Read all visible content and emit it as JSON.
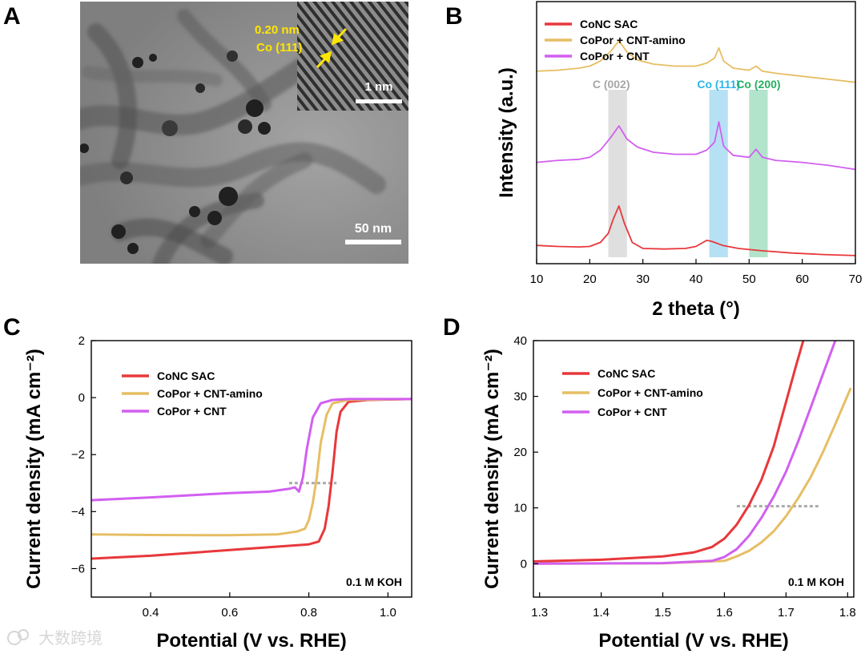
{
  "panels": {
    "a": "A",
    "b": "B",
    "c": "C",
    "d": "D"
  },
  "colors": {
    "red": "#e8383b",
    "gold": "#e6be64",
    "violet": "#d25ff0",
    "gray": "#aaaaaa",
    "frame": "#000000"
  },
  "tem": {
    "scale_bar": "50 nm",
    "inset_scale_bar": "1 nm",
    "lattice_spacing": "0.20 nm",
    "lattice_plane": "Co (111)"
  },
  "watermark": "大数跨境",
  "chart_data": [
    {
      "panel": "B",
      "type": "line",
      "xlabel": "2 theta (°)",
      "ylabel": "Intensity (a.u.)",
      "xlim": [
        10,
        70
      ],
      "xticks": [
        "10",
        "20",
        "30",
        "40",
        "50",
        "60",
        "70"
      ],
      "legend": [
        "CoNC SAC",
        "CoPor + CNT-amino",
        "CoPor + CNT"
      ],
      "bands": [
        {
          "label": "C (002)",
          "from": 23.5,
          "to": 27,
          "color": "#d9d9d9",
          "text_color": "#a6a6a6"
        },
        {
          "label": "Co (111)",
          "from": 42.5,
          "to": 46,
          "color": "#a9dcf2",
          "text_color": "#29b6e9"
        },
        {
          "label": "Co (200)",
          "from": 50,
          "to": 53.5,
          "color": "#a5dfc2",
          "text_color": "#22b05c"
        }
      ],
      "series": [
        {
          "name": "CoNC SAC",
          "color": "#e8383b",
          "offset": 0,
          "x": [
            10,
            14,
            18,
            20,
            22,
            23.5,
            24.5,
            25.5,
            26.5,
            28,
            30,
            34,
            38,
            40,
            42,
            43,
            45,
            48,
            52,
            58,
            64,
            70
          ],
          "y": [
            1.3,
            1.2,
            1.15,
            1.2,
            1.6,
            2.5,
            4.0,
            5.2,
            3.5,
            1.6,
            1.0,
            0.95,
            1.0,
            1.2,
            1.8,
            1.7,
            1.3,
            1.0,
            0.8,
            0.55,
            0.4,
            0.3
          ]
        },
        {
          "name": "CoPor + CNT",
          "color": "#d25ff0",
          "offset": 8.5,
          "x": [
            10,
            14,
            18,
            20,
            22,
            24,
            25.5,
            27,
            29,
            32,
            36,
            40,
            42,
            43.5,
            44.3,
            45.2,
            47,
            50,
            51.3,
            52.5,
            55,
            60,
            65,
            70
          ],
          "y": [
            1.0,
            1.2,
            1.3,
            1.5,
            2.2,
            3.5,
            4.6,
            3.3,
            2.5,
            2.0,
            1.8,
            1.8,
            2.2,
            3.0,
            5.0,
            2.6,
            1.7,
            1.5,
            2.3,
            1.5,
            1.2,
            1.0,
            0.7,
            0.3
          ]
        },
        {
          "name": "CoPor + CNT-amino",
          "color": "#e6be64",
          "offset": 17.0,
          "x": [
            10,
            14,
            18,
            20,
            22,
            24,
            25.5,
            27,
            29,
            32,
            36,
            40,
            42,
            43.5,
            44.3,
            45.2,
            47,
            50,
            51.3,
            52.5,
            55,
            60,
            65,
            70
          ],
          "y": [
            1.5,
            1.6,
            1.8,
            2.0,
            2.5,
            3.5,
            4.5,
            3.4,
            2.6,
            2.2,
            2.0,
            2.0,
            2.3,
            2.8,
            3.8,
            2.5,
            1.8,
            1.6,
            2.0,
            1.5,
            1.3,
            1.0,
            0.7,
            0.4
          ]
        }
      ]
    },
    {
      "panel": "C",
      "type": "line",
      "xlabel": "Potential (V vs. RHE)",
      "ylabel": "Current density (mA cm⁻²)",
      "xlim": [
        0.25,
        1.06
      ],
      "ylim": [
        -7,
        2
      ],
      "xticks": [
        0.4,
        0.6,
        0.8,
        1.0
      ],
      "xtick_labels": [
        "0.4",
        "0.6",
        "0.8",
        "1.0"
      ],
      "yticks": [
        2,
        0,
        -2,
        -4,
        -6
      ],
      "ytick_labels": [
        "2",
        "0",
        "−2",
        "−4",
        "−6"
      ],
      "legend": [
        "CoNC SAC",
        "CoPor + CNT-amino",
        "CoPor + CNT"
      ],
      "annotation": "0.1 M KOH",
      "reference_line": {
        "from": 0.75,
        "to": 0.87,
        "y": -3.0
      },
      "series": [
        {
          "name": "CoNC SAC",
          "color": "#e8383b",
          "x": [
            0.25,
            0.4,
            0.6,
            0.75,
            0.8,
            0.825,
            0.84,
            0.85,
            0.86,
            0.87,
            0.88,
            0.9,
            0.95,
            1.06
          ],
          "y": [
            -5.65,
            -5.55,
            -5.35,
            -5.2,
            -5.15,
            -5.05,
            -4.6,
            -3.8,
            -2.6,
            -1.2,
            -0.5,
            -0.15,
            -0.08,
            -0.05
          ]
        },
        {
          "name": "CoPor + CNT-amino",
          "color": "#e6be64",
          "x": [
            0.25,
            0.4,
            0.6,
            0.72,
            0.77,
            0.79,
            0.8,
            0.81,
            0.82,
            0.83,
            0.845,
            0.86,
            0.9,
            1.06
          ],
          "y": [
            -4.8,
            -4.82,
            -4.83,
            -4.8,
            -4.7,
            -4.6,
            -4.3,
            -3.7,
            -2.8,
            -1.6,
            -0.6,
            -0.2,
            -0.08,
            -0.05
          ]
        },
        {
          "name": "CoPor + CNT",
          "color": "#d25ff0",
          "x": [
            0.25,
            0.4,
            0.6,
            0.7,
            0.75,
            0.765,
            0.775,
            0.785,
            0.795,
            0.81,
            0.83,
            0.86,
            0.9,
            1.06
          ],
          "y": [
            -3.6,
            -3.5,
            -3.35,
            -3.3,
            -3.2,
            -3.15,
            -3.3,
            -2.8,
            -1.8,
            -0.7,
            -0.2,
            -0.08,
            -0.05,
            -0.05
          ]
        }
      ]
    },
    {
      "panel": "D",
      "type": "line",
      "xlabel": "Potential (V vs. RHE)",
      "ylabel": "Current density (mA cm⁻²)",
      "xlim": [
        1.29,
        1.81
      ],
      "ylim": [
        -6,
        40
      ],
      "xticks": [
        1.3,
        1.4,
        1.5,
        1.6,
        1.7,
        1.8
      ],
      "xtick_labels": [
        "1.3",
        "1.4",
        "1.5",
        "1.6",
        "1.7",
        "1.8"
      ],
      "yticks": [
        0,
        10,
        20,
        30,
        40
      ],
      "ytick_labels": [
        "0",
        "10",
        "20",
        "30",
        "40"
      ],
      "legend": [
        "CoNC SAC",
        "CoPor + CNT-amino",
        "CoPor + CNT"
      ],
      "annotation": "0.1 M KOH",
      "reference_line": {
        "from": 1.62,
        "to": 1.755,
        "y": 10.3
      },
      "series": [
        {
          "name": "CoNC SAC",
          "color": "#e8383b",
          "x": [
            1.29,
            1.4,
            1.5,
            1.55,
            1.58,
            1.6,
            1.62,
            1.64,
            1.66,
            1.68,
            1.7,
            1.715,
            1.728
          ],
          "y": [
            0.4,
            0.7,
            1.3,
            2.0,
            3.0,
            4.5,
            7.0,
            10.5,
            15.0,
            21.0,
            29.0,
            35.0,
            40.0
          ]
        },
        {
          "name": "CoPor + CNT-amino",
          "color": "#e6be64",
          "x": [
            1.29,
            1.5,
            1.6,
            1.62,
            1.64,
            1.66,
            1.68,
            1.7,
            1.72,
            1.74,
            1.76,
            1.78,
            1.805
          ],
          "y": [
            0.0,
            0.05,
            0.5,
            1.3,
            2.3,
            3.8,
            5.8,
            8.5,
            11.8,
            15.5,
            20.0,
            25.0,
            31.5
          ]
        },
        {
          "name": "CoPor + CNT",
          "color": "#d25ff0",
          "x": [
            1.29,
            1.5,
            1.58,
            1.6,
            1.62,
            1.64,
            1.66,
            1.68,
            1.7,
            1.72,
            1.74,
            1.76,
            1.78
          ],
          "y": [
            0.0,
            0.1,
            0.5,
            1.2,
            2.6,
            5.0,
            8.2,
            12.0,
            16.5,
            22.0,
            28.0,
            34.0,
            40.0
          ]
        }
      ]
    }
  ]
}
